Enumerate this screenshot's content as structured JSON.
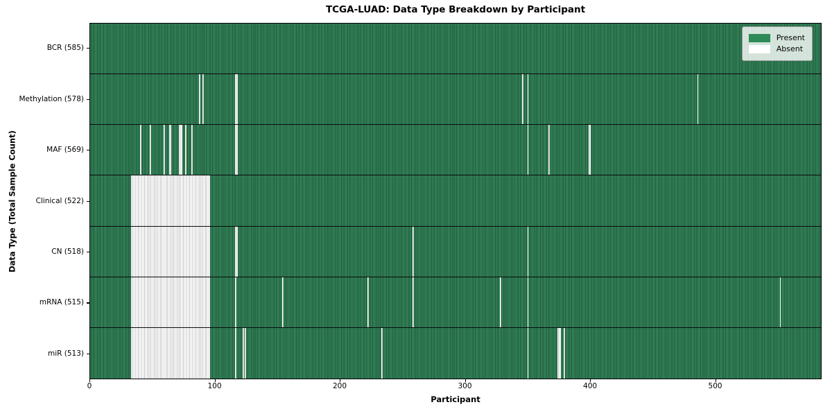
{
  "chart_data": {
    "type": "heatmap",
    "title": "TCGA-LUAD: Data Type Breakdown by Participant",
    "xlabel": "Participant",
    "ylabel": "Data Type (Total Sample Count)",
    "n_participants": 585,
    "x_range": [
      0,
      585
    ],
    "x_ticks": [
      "0",
      "100",
      "200",
      "300",
      "400",
      "500"
    ],
    "grid": false,
    "legend_position": "upper right",
    "legend": [
      {
        "label": "Present",
        "color": "#2e8b57"
      },
      {
        "label": "Absent",
        "color": "#ffffff"
      }
    ],
    "cell_note": "absent entries are participant indices; [a,b] means range a..b-1 absent",
    "rows": [
      {
        "label": "BCR (585)",
        "data_type": "BCR",
        "total_samples": 585,
        "absent": []
      },
      {
        "label": "Methylation (578)",
        "data_type": "Methylation",
        "total_samples": 578,
        "absent": [
          87,
          90,
          [
            116,
            118
          ],
          346,
          350,
          486
        ]
      },
      {
        "label": "MAF (569)",
        "data_type": "MAF",
        "total_samples": 569,
        "absent": [
          40,
          48,
          59,
          [
            63,
            65
          ],
          [
            71,
            74
          ],
          76,
          81,
          [
            116,
            118
          ],
          350,
          367,
          [
            399,
            401
          ]
        ]
      },
      {
        "label": "Clinical (522)",
        "data_type": "Clinical",
        "total_samples": 522,
        "absent": [
          [
            33,
            96
          ]
        ]
      },
      {
        "label": "CN (518)",
        "data_type": "CN",
        "total_samples": 518,
        "absent": [
          [
            33,
            96
          ],
          [
            116,
            118
          ],
          258,
          350
        ]
      },
      {
        "label": "mRNA (515)",
        "data_type": "mRNA",
        "total_samples": 515,
        "absent": [
          [
            33,
            96
          ],
          116,
          154,
          222,
          258,
          328,
          350,
          552
        ]
      },
      {
        "label": "miR (513)",
        "data_type": "miR",
        "total_samples": 513,
        "absent": [
          [
            33,
            96
          ],
          116,
          122,
          124,
          233,
          350,
          [
            374,
            377
          ],
          379
        ]
      }
    ]
  }
}
